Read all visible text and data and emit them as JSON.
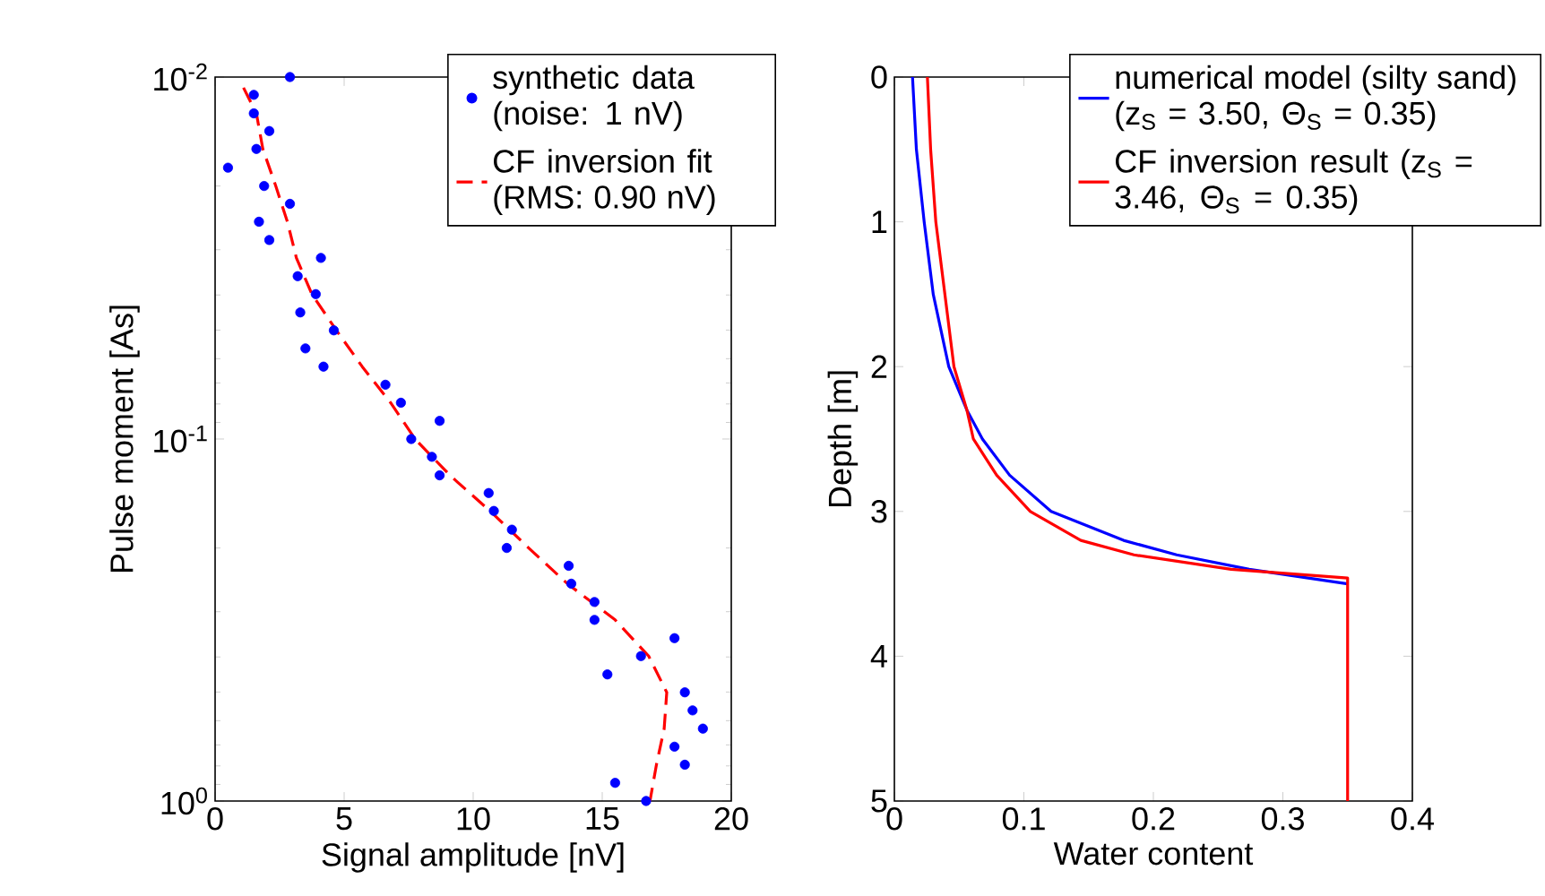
{
  "chart_data": [
    {
      "type": "scatter",
      "xlabel": "Signal amplitude [nV]",
      "ylabel": "Pulse moment [As]",
      "xlim": [
        0,
        20
      ],
      "xticks": [
        0,
        5,
        10,
        15,
        20
      ],
      "ylim": [
        1,
        0.01
      ],
      "yticks": [
        {
          "value": 0.01,
          "label": "10$^{-2}$"
        },
        {
          "value": 0.1,
          "label": "10$^{-1}$"
        },
        {
          "value": 1,
          "label": "10$^{0}$"
        }
      ],
      "log": "y",
      "legend": "top right",
      "series": [
        {
          "name": "synthetic data (noise: 1 nV)",
          "type": "scatter",
          "marker": "circle",
          "color": "#0000ff",
          "x": [
            2.9,
            1.5,
            1.5,
            2.1,
            1.6,
            0.5,
            1.9,
            2.9,
            1.7,
            2.1,
            4.1,
            3.2,
            3.9,
            3.3,
            4.6,
            3.5,
            4.2,
            6.6,
            7.2,
            8.7,
            7.6,
            8.4,
            8.7,
            10.6,
            10.8,
            11.5,
            11.3,
            13.7,
            13.8,
            14.7,
            14.7,
            17.8,
            16.5,
            15.2,
            18.2,
            18.5,
            18.9,
            17.8,
            18.2,
            15.5,
            16.7
          ],
          "values": [
            0.01,
            0.0112,
            0.0126,
            0.0141,
            0.0158,
            0.0178,
            0.02,
            0.0224,
            0.0251,
            0.0282,
            0.0316,
            0.0355,
            0.0398,
            0.0447,
            0.0501,
            0.0562,
            0.0631,
            0.0708,
            0.0794,
            0.0891,
            0.1,
            0.112,
            0.126,
            0.141,
            0.158,
            0.178,
            0.2,
            0.224,
            0.251,
            0.282,
            0.316,
            0.355,
            0.398,
            0.447,
            0.501,
            0.562,
            0.631,
            0.708,
            0.794,
            0.891,
            1
          ]
        },
        {
          "name": "CF inversion fit (RMS: 0.90 nV)",
          "type": "line",
          "line_style": "dashed",
          "color": "#ff0000",
          "x": [
            1.1,
            1.6,
            1.85,
            2.35,
            2.8,
            3.15,
            3.75,
            4.7,
            5.7,
            6.8,
            7.75,
            9.1,
            10.65,
            12.15,
            13.65,
            15.5,
            16.8,
            17.5,
            17.4,
            17.1,
            16.85
          ],
          "values": [
            0.0107,
            0.0126,
            0.0158,
            0.02,
            0.0251,
            0.0316,
            0.0398,
            0.0501,
            0.0631,
            0.0794,
            0.1,
            0.126,
            0.158,
            0.2,
            0.251,
            0.316,
            0.398,
            0.501,
            0.631,
            0.794,
            1
          ]
        }
      ]
    },
    {
      "type": "line",
      "xlabel": "Water content",
      "ylabel": "Depth [m]",
      "xlim": [
        0,
        0.4
      ],
      "xticks": [
        0,
        0.1,
        0.2,
        0.3,
        0.4
      ],
      "ylim": [
        5,
        0
      ],
      "yticks": [
        0,
        1,
        2,
        3,
        4,
        5
      ],
      "legend": "top right",
      "series": [
        {
          "name": "numerical model (silty sand) (z$_{S}$ = 3.50, Θ$_{S}$ = 0.35)",
          "color": "#0000ff",
          "line_style": "solid",
          "x": [
            0.014,
            0.017,
            0.023,
            0.03,
            0.042,
            0.056,
            0.068,
            0.089,
            0.121,
            0.177,
            0.218,
            0.274,
            0.35
          ],
          "values": [
            0,
            0.5,
            1,
            1.5,
            2,
            2.3,
            2.5,
            2.75,
            3,
            3.2,
            3.3,
            3.4,
            3.5
          ]
        },
        {
          "name": "CF inversion result (z$_{S}$ = 3.46, Θ$_{S}$ = 0.35)",
          "color": "#ff0000",
          "line_style": "solid",
          "x": [
            0.0255,
            0.028,
            0.032,
            0.039,
            0.046,
            0.056,
            0.061,
            0.079,
            0.105,
            0.144,
            0.185,
            0.26,
            0.35,
            0.35
          ],
          "values": [
            0,
            0.5,
            1,
            1.5,
            2,
            2.3,
            2.5,
            2.75,
            3,
            3.2,
            3.3,
            3.4,
            3.46,
            5
          ]
        }
      ]
    }
  ]
}
